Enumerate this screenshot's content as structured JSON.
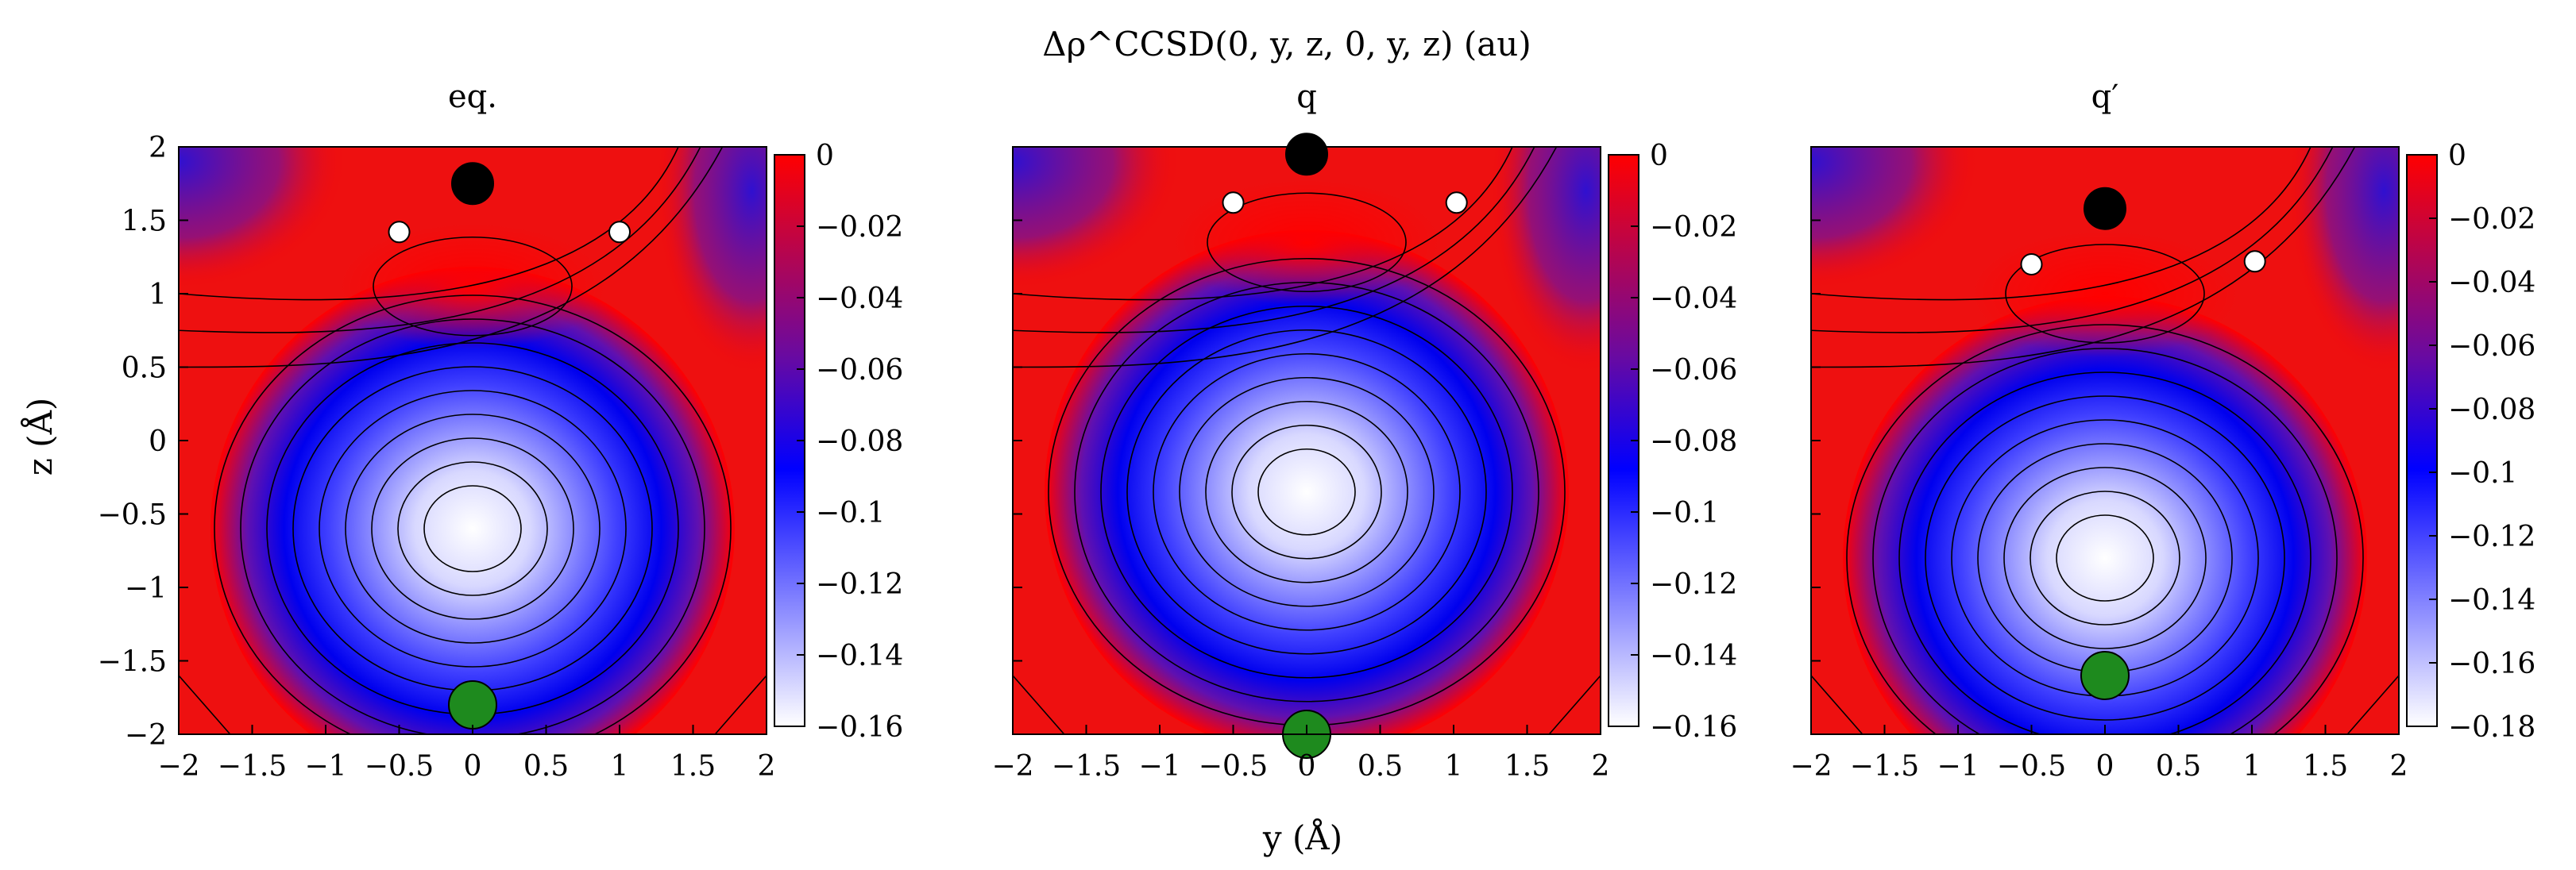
{
  "title": "Δρ^CCSD(0, y, z, 0, y, z) (au)",
  "xlabel": "y (Å)",
  "ylabel": "z (Å)",
  "chart_data": [
    {
      "type": "heatmap",
      "subtitle": "eq.",
      "xlim": [
        -2,
        2
      ],
      "ylim": [
        -2,
        2
      ],
      "xticks": [
        "−2",
        "−1.5",
        "−1",
        "−0.5",
        "0",
        "0.5",
        "1",
        "1.5",
        "2"
      ],
      "yticks": [
        "−2",
        "−1.5",
        "−1",
        "−0.5",
        "0",
        "0.5",
        "1",
        "1.5",
        "2"
      ],
      "colorbar": {
        "range": [
          -0.16,
          0
        ],
        "ticks": [
          "0",
          "−0.02",
          "−0.04",
          "−0.06",
          "−0.08",
          "−0.1",
          "−0.12",
          "−0.14",
          "−0.16"
        ],
        "colors": [
          "#ffffff",
          "#0000ff",
          "#ff0000"
        ]
      },
      "minimum": {
        "y": 0,
        "z": -0.6,
        "value": -0.16
      },
      "positive_lobe": {
        "y": 0,
        "z": 1.05
      },
      "atoms": [
        {
          "kind": "black",
          "y": 0,
          "z": 1.75
        },
        {
          "kind": "white",
          "y": -0.5,
          "z": 1.42
        },
        {
          "kind": "white",
          "y": 1.0,
          "z": 1.42
        },
        {
          "kind": "green",
          "y": 0,
          "z": -1.8
        }
      ]
    },
    {
      "type": "heatmap",
      "subtitle": "q",
      "xlim": [
        -2,
        2
      ],
      "ylim": [
        -2,
        2
      ],
      "xticks": [
        "−2",
        "−1.5",
        "−1",
        "−0.5",
        "0",
        "0.5",
        "1",
        "1.5",
        "2"
      ],
      "yticks": [],
      "colorbar": {
        "range": [
          -0.16,
          0
        ],
        "ticks": [
          "0",
          "−0.02",
          "−0.04",
          "−0.06",
          "−0.08",
          "−0.1",
          "−0.12",
          "−0.14",
          "−0.16"
        ],
        "colors": [
          "#ffffff",
          "#0000ff",
          "#ff0000"
        ]
      },
      "minimum": {
        "y": 0,
        "z": -0.35,
        "value": -0.16
      },
      "positive_lobe": {
        "y": 0,
        "z": 1.35
      },
      "atoms": [
        {
          "kind": "black",
          "y": 0,
          "z": 1.95
        },
        {
          "kind": "white",
          "y": -0.5,
          "z": 1.62
        },
        {
          "kind": "white",
          "y": 1.02,
          "z": 1.62
        },
        {
          "kind": "green",
          "y": 0,
          "z": -2.0
        }
      ]
    },
    {
      "type": "heatmap",
      "subtitle": "q′",
      "xlim": [
        -2,
        2
      ],
      "ylim": [
        -2,
        2
      ],
      "xticks": [
        "−2",
        "−1.5",
        "−1",
        "−0.5",
        "0",
        "0.5",
        "1",
        "1.5",
        "2"
      ],
      "yticks": [],
      "colorbar": {
        "range": [
          -0.18,
          0
        ],
        "ticks": [
          "0",
          "−0.02",
          "−0.04",
          "−0.06",
          "−0.08",
          "−0.1",
          "−0.12",
          "−0.14",
          "−0.16",
          "−0.18"
        ],
        "colors": [
          "#ffffff",
          "#0000ff",
          "#ff0000"
        ]
      },
      "minimum": {
        "y": 0,
        "z": -0.8,
        "value": -0.18
      },
      "positive_lobe": {
        "y": 0,
        "z": 1.0
      },
      "atoms": [
        {
          "kind": "black",
          "y": 0,
          "z": 1.58
        },
        {
          "kind": "white",
          "y": -0.5,
          "z": 1.2
        },
        {
          "kind": "white",
          "y": 1.02,
          "z": 1.22
        },
        {
          "kind": "green",
          "y": 0,
          "z": -1.6
        }
      ]
    }
  ]
}
